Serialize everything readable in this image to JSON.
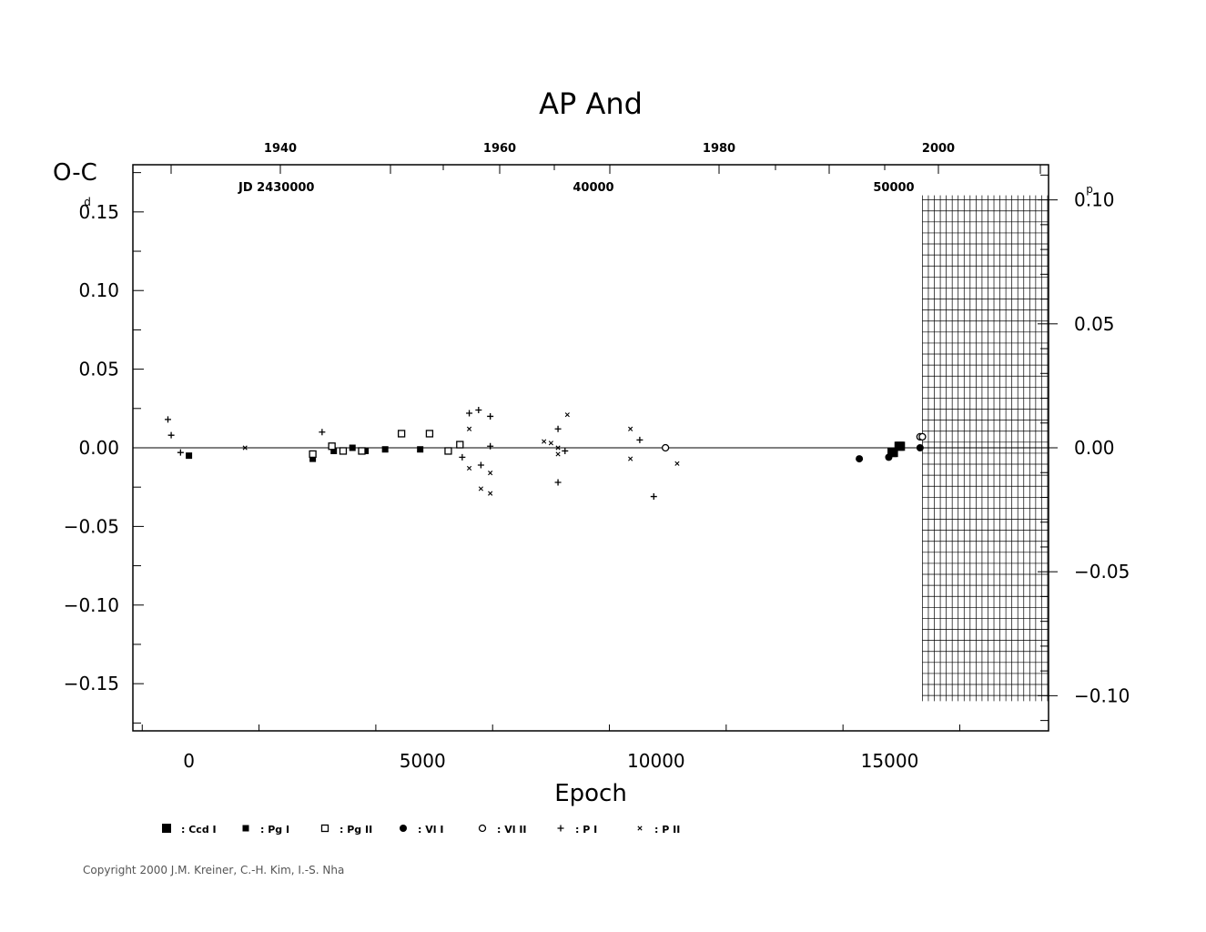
{
  "chart_data": {
    "type": "scatter",
    "title": "AP  And",
    "xlabel": "Epoch",
    "ylabel": "O-C",
    "ylabel_unit": "d",
    "right_axis_unit": "p",
    "xlim": [
      -1200,
      18400
    ],
    "ylim": [
      -0.18,
      0.18
    ],
    "x_ticks": [
      0,
      5000,
      10000,
      15000
    ],
    "x_tick_labels": [
      "0",
      "5000",
      "10000",
      "15000"
    ],
    "y_ticks": [
      0.15,
      0.1,
      0.05,
      0.0,
      -0.05,
      -0.1,
      -0.15
    ],
    "y_tick_labels": [
      "0.15",
      "0.10",
      "0.05",
      "0.00",
      "−0.05",
      "−0.10",
      "−0.15"
    ],
    "right_ticks": [
      0.1,
      0.05,
      0.0,
      -0.05,
      -0.1
    ],
    "right_tick_labels": [
      "0.10",
      "0.05",
      "0.00",
      "−0.05",
      "−0.10"
    ],
    "right_axis_scale": 1.5765,
    "top_year_ticks": [
      1940,
      1960,
      1980,
      2000
    ],
    "top_year_labels": [
      "1940",
      "1960",
      "1980",
      "2000"
    ],
    "top_jd_labels": [
      "JD  2430000",
      "40000",
      "50000"
    ],
    "shaded_region_x": [
      15700,
      18400
    ],
    "shaded_region_right_y": [
      0.1,
      -0.1
    ],
    "series": [
      {
        "name": ": Ccd  I",
        "marker": "filled-square-large",
        "points": [
          [
            15050,
            -0.003
          ],
          [
            15080,
            -0.003
          ],
          [
            15200,
            0.001
          ],
          [
            15230,
            0.001
          ]
        ]
      },
      {
        "name": ": Pg  I",
        "marker": "filled-square",
        "points": [
          [
            0,
            -0.005
          ],
          [
            2650,
            -0.007
          ],
          [
            3100,
            -0.002
          ],
          [
            3500,
            0.0
          ],
          [
            3780,
            -0.002
          ],
          [
            4200,
            -0.001
          ],
          [
            4950,
            -0.001
          ]
        ]
      },
      {
        "name": ": Pg  II",
        "marker": "open-square",
        "points": [
          [
            2650,
            -0.004
          ],
          [
            3060,
            0.001
          ],
          [
            3300,
            -0.002
          ],
          [
            3700,
            -0.002
          ],
          [
            4550,
            0.009
          ],
          [
            5150,
            0.009
          ],
          [
            5550,
            -0.002
          ],
          [
            5800,
            0.002
          ]
        ]
      },
      {
        "name": ": Vl  I",
        "marker": "filled-circle",
        "points": [
          [
            14350,
            -0.007
          ],
          [
            14980,
            -0.006
          ],
          [
            15650,
            0.0
          ]
        ]
      },
      {
        "name": ": Vl  II",
        "marker": "open-circle",
        "points": [
          [
            10200,
            0.0
          ],
          [
            15650,
            0.007
          ],
          [
            15700,
            0.007
          ]
        ]
      },
      {
        "name": ": P  I",
        "marker": "plus",
        "points": [
          [
            -450,
            0.018
          ],
          [
            -380,
            0.008
          ],
          [
            -180,
            -0.003
          ],
          [
            2850,
            0.01
          ],
          [
            5850,
            -0.006
          ],
          [
            6000,
            0.022
          ],
          [
            6200,
            0.024
          ],
          [
            6250,
            -0.011
          ],
          [
            6450,
            0.02
          ],
          [
            6450,
            0.001
          ],
          [
            7900,
            0.012
          ],
          [
            7900,
            -0.022
          ],
          [
            8050,
            -0.002
          ],
          [
            9650,
            0.005
          ],
          [
            9950,
            -0.031
          ]
        ]
      },
      {
        "name": ": P  II",
        "marker": "cross",
        "points": [
          [
            1200,
            0.0
          ],
          [
            6000,
            0.012
          ],
          [
            6000,
            -0.013
          ],
          [
            6250,
            -0.026
          ],
          [
            6450,
            -0.016
          ],
          [
            6450,
            -0.029
          ],
          [
            7600,
            0.004
          ],
          [
            7750,
            0.003
          ],
          [
            7900,
            0.0
          ],
          [
            7900,
            -0.004
          ],
          [
            8100,
            0.021
          ],
          [
            9450,
            0.012
          ],
          [
            9450,
            -0.007
          ],
          [
            10450,
            -0.01
          ]
        ]
      }
    ]
  },
  "copyright": "Copyright 2000 J.M. Kreiner, C.-H. Kim, I.-S. Nha"
}
